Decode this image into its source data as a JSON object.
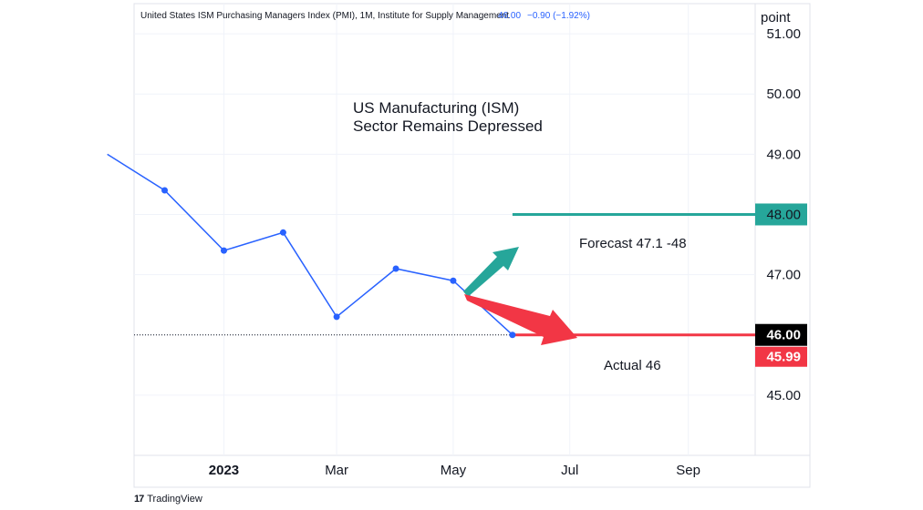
{
  "header": {
    "symbol_info": "United States ISM Purchasing Managers Index (PMI), 1M, Institute for Supply Management",
    "last_value": "46.00",
    "change": "−0.90 (−1.92%)"
  },
  "axis_unit_label": "point",
  "annotation": {
    "line1": "US Manufacturing (ISM)",
    "line2": "Sector Remains Depressed"
  },
  "forecast_label": "Forecast 47.1 -48",
  "actual_label": "Actual 46",
  "footer": {
    "logo": "17",
    "brand": "TradingView"
  },
  "colors": {
    "series": "#2962ff",
    "forecast": "#26a69a",
    "actual": "#f23645",
    "last_price_bg": "#000000",
    "grid": "#f0f3fa",
    "text": "#131722"
  },
  "chart_data": {
    "type": "line",
    "title": "US Manufacturing (ISM) Sector Remains Depressed",
    "x_tick_labels": [
      "2023",
      "Mar",
      "May",
      "Jul",
      "Sep"
    ],
    "x_tick_dates": [
      "2023-01",
      "2023-03",
      "2023-05",
      "2023-07",
      "2023-09"
    ],
    "xlim": [
      "2022-11-15",
      "2023-10-06"
    ],
    "y_tick_labels": [
      "45.00",
      "46.00",
      "47.00",
      "48.00",
      "49.00",
      "50.00",
      "51.00"
    ],
    "ylim": [
      44.0,
      51.5
    ],
    "series": [
      {
        "x": [
          "2022-11",
          "2022-12",
          "2023-01",
          "2023-02",
          "2023-03",
          "2023-04",
          "2023-05",
          "2023-06"
        ],
        "y": [
          49.0,
          48.4,
          47.4,
          47.7,
          46.3,
          47.1,
          46.9,
          46.0
        ],
        "markers_from_index": 1
      }
    ],
    "forecast_line": {
      "value": 48.0,
      "from": "2023-06",
      "label": "48.00"
    },
    "actual_line": {
      "value": 46.0,
      "from": "2023-06",
      "label": "46.00"
    },
    "actual_value_label": "45.99",
    "last_close_line": 46.0,
    "grid": true,
    "y_axis_position": "right"
  }
}
